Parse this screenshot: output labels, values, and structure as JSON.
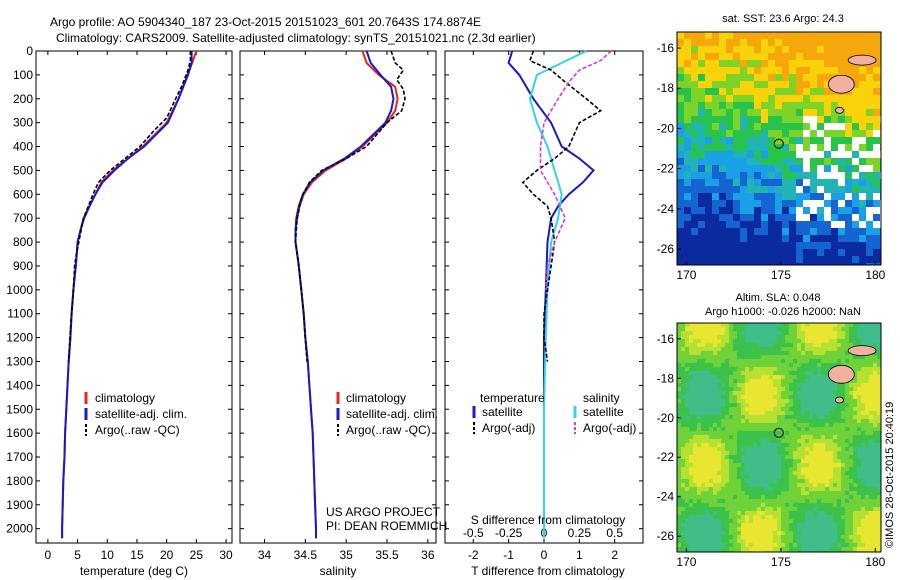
{
  "header": {
    "line1": "Argo profile: AO 5904340_187 23-Oct-2015 20151023_601 20.7643S 174.8874E",
    "line2": "Climatology: CARS2009. Satellite-adjusted climatology: synTS_20151021.nc (2.3d earlier)"
  },
  "credit": {
    "project": "US ARGO PROJECT",
    "pi": "PI: DEAN ROEMMICH",
    "stamp": "©IMOS 28-Oct-2015 20:40:19"
  },
  "colors": {
    "climatology": "#e8261c",
    "satellite": "#1a1acc",
    "argo": "#000000",
    "sat_diff": "#1a1acc",
    "sal_sat_diff": "#33d6e6",
    "sal_argo_diff": "#d93ad9",
    "land": "#f2b0a0"
  },
  "chart_data": [
    {
      "type": "line",
      "panel": "temperature",
      "xlabel": "temperature (deg C)",
      "ylabel": "",
      "xlim": [
        -2,
        31
      ],
      "ylim": [
        2060,
        0
      ],
      "xticks": [
        0,
        5,
        10,
        15,
        20,
        25,
        30
      ],
      "yticks": [
        0,
        100,
        200,
        300,
        400,
        500,
        600,
        700,
        800,
        900,
        1000,
        1100,
        1200,
        1300,
        1400,
        1500,
        1600,
        1700,
        1800,
        1900,
        2000
      ],
      "legend": [
        "climatology",
        "satellite-adj. clim.",
        "Argo(..raw -QC)"
      ],
      "series": [
        {
          "name": "climatology",
          "color": "#e8261c",
          "points": [
            [
              25.0,
              0
            ],
            [
              24.3,
              50
            ],
            [
              23.5,
              100
            ],
            [
              22.0,
              200
            ],
            [
              20.0,
              300
            ],
            [
              16.0,
              400
            ],
            [
              13.5,
              450
            ],
            [
              11.0,
              500
            ],
            [
              9.0,
              550
            ],
            [
              8.0,
              600
            ],
            [
              7.0,
              650
            ],
            [
              6.0,
              700
            ],
            [
              5.5,
              750
            ],
            [
              5.0,
              800
            ],
            [
              4.7,
              900
            ],
            [
              4.3,
              1000
            ],
            [
              4.0,
              1100
            ],
            [
              3.8,
              1200
            ],
            [
              3.5,
              1300
            ],
            [
              3.3,
              1400
            ],
            [
              3.1,
              1500
            ],
            [
              2.9,
              1600
            ],
            [
              2.8,
              1700
            ],
            [
              2.6,
              1800
            ],
            [
              2.5,
              1900
            ],
            [
              2.4,
              2000
            ],
            [
              2.4,
              2040
            ]
          ]
        },
        {
          "name": "satellite-adj. clim.",
          "color": "#1a1acc",
          "points": [
            [
              24.2,
              0
            ],
            [
              24.2,
              50
            ],
            [
              23.6,
              100
            ],
            [
              22.0,
              200
            ],
            [
              20.2,
              300
            ],
            [
              16.2,
              400
            ],
            [
              13.5,
              450
            ],
            [
              11.2,
              500
            ],
            [
              9.2,
              550
            ],
            [
              8.0,
              600
            ],
            [
              7.0,
              650
            ],
            [
              6.1,
              700
            ],
            [
              5.5,
              750
            ],
            [
              5.0,
              800
            ],
            [
              4.7,
              900
            ],
            [
              4.3,
              1000
            ],
            [
              4.0,
              1100
            ],
            [
              3.8,
              1200
            ],
            [
              3.5,
              1300
            ],
            [
              3.3,
              1400
            ],
            [
              3.1,
              1500
            ],
            [
              2.9,
              1600
            ],
            [
              2.8,
              1700
            ],
            [
              2.6,
              1800
            ],
            [
              2.5,
              1900
            ],
            [
              2.4,
              2000
            ],
            [
              2.4,
              2040
            ]
          ]
        },
        {
          "name": "Argo(..raw -QC)",
          "color": "#000000",
          "dashed": true,
          "points": [
            [
              24.0,
              0
            ],
            [
              24.0,
              40
            ],
            [
              23.6,
              80
            ],
            [
              22.5,
              150
            ],
            [
              21.5,
              200
            ],
            [
              20.0,
              280
            ],
            [
              18.0,
              330
            ],
            [
              15.5,
              400
            ],
            [
              13.0,
              450
            ],
            [
              10.5,
              500
            ],
            [
              8.5,
              550
            ],
            [
              7.6,
              600
            ],
            [
              6.8,
              650
            ],
            [
              6.0,
              700
            ],
            [
              5.6,
              750
            ],
            [
              5.2,
              800
            ],
            [
              4.8,
              850
            ],
            [
              4.5,
              900
            ],
            [
              4.3,
              1000
            ],
            [
              4.0,
              1100
            ],
            [
              3.7,
              1200
            ],
            [
              3.5,
              1300
            ]
          ]
        }
      ]
    },
    {
      "type": "line",
      "panel": "salinity",
      "xlabel": "salinity",
      "ylabel": "",
      "xlim": [
        33.7,
        36.1
      ],
      "ylim": [
        2060,
        0
      ],
      "xticks": [
        34,
        34.5,
        35,
        35.5,
        36
      ],
      "legend": [
        "climatology",
        "satellite-adj. clim.",
        "Argo(..raw -QC)"
      ],
      "series": [
        {
          "name": "climatology",
          "color": "#e8261c",
          "points": [
            [
              35.2,
              0
            ],
            [
              35.25,
              50
            ],
            [
              35.4,
              100
            ],
            [
              35.6,
              150
            ],
            [
              35.63,
              200
            ],
            [
              35.6,
              250
            ],
            [
              35.5,
              300
            ],
            [
              35.2,
              400
            ],
            [
              35.0,
              450
            ],
            [
              34.75,
              500
            ],
            [
              34.58,
              550
            ],
            [
              34.48,
              600
            ],
            [
              34.43,
              650
            ],
            [
              34.4,
              700
            ],
            [
              34.38,
              750
            ],
            [
              34.38,
              800
            ],
            [
              34.4,
              850
            ],
            [
              34.42,
              900
            ],
            [
              34.45,
              1000
            ],
            [
              34.48,
              1100
            ],
            [
              34.5,
              1200
            ],
            [
              34.53,
              1300
            ],
            [
              34.55,
              1400
            ],
            [
              34.57,
              1500
            ],
            [
              34.59,
              1600
            ],
            [
              34.6,
              1700
            ],
            [
              34.61,
              1800
            ],
            [
              34.62,
              1900
            ],
            [
              34.63,
              2000
            ],
            [
              34.63,
              2040
            ]
          ]
        },
        {
          "name": "satellite-adj. clim.",
          "color": "#1a1acc",
          "points": [
            [
              35.25,
              0
            ],
            [
              35.3,
              50
            ],
            [
              35.42,
              100
            ],
            [
              35.55,
              150
            ],
            [
              35.58,
              200
            ],
            [
              35.55,
              250
            ],
            [
              35.48,
              300
            ],
            [
              35.18,
              400
            ],
            [
              34.98,
              450
            ],
            [
              34.72,
              500
            ],
            [
              34.56,
              550
            ],
            [
              34.47,
              600
            ],
            [
              34.42,
              650
            ],
            [
              34.39,
              700
            ],
            [
              34.38,
              750
            ],
            [
              34.38,
              800
            ],
            [
              34.4,
              850
            ],
            [
              34.42,
              900
            ],
            [
              34.45,
              1000
            ],
            [
              34.48,
              1100
            ],
            [
              34.5,
              1200
            ],
            [
              34.53,
              1300
            ],
            [
              34.55,
              1400
            ],
            [
              34.57,
              1500
            ],
            [
              34.59,
              1600
            ],
            [
              34.6,
              1700
            ],
            [
              34.61,
              1800
            ],
            [
              34.62,
              1900
            ],
            [
              34.63,
              2000
            ],
            [
              34.63,
              2040
            ]
          ]
        },
        {
          "name": "Argo(..raw -QC)",
          "color": "#000000",
          "dashed": true,
          "points": [
            [
              35.55,
              0
            ],
            [
              35.6,
              50
            ],
            [
              35.7,
              80
            ],
            [
              35.62,
              120
            ],
            [
              35.7,
              160
            ],
            [
              35.72,
              200
            ],
            [
              35.68,
              250
            ],
            [
              35.5,
              300
            ],
            [
              35.25,
              400
            ],
            [
              35.0,
              450
            ],
            [
              34.7,
              500
            ],
            [
              34.55,
              550
            ],
            [
              34.47,
              600
            ],
            [
              34.43,
              650
            ],
            [
              34.4,
              700
            ],
            [
              34.39,
              750
            ],
            [
              34.38,
              800
            ],
            [
              34.4,
              850
            ],
            [
              34.42,
              900
            ],
            [
              34.45,
              1000
            ],
            [
              34.48,
              1100
            ],
            [
              34.5,
              1200
            ],
            [
              34.52,
              1300
            ]
          ]
        }
      ]
    },
    {
      "type": "line",
      "panel": "difference",
      "xlabel": "T difference from climatology",
      "top_xlabel": "S difference from climatology",
      "xlim": [
        -2.8,
        2.8
      ],
      "ylim": [
        2060,
        0
      ],
      "xticks": [
        -2,
        -1,
        0,
        1,
        2
      ],
      "top_xticks": [
        -0.5,
        -0.25,
        0,
        0.25,
        0.5
      ],
      "legend_temperature_title": "temperature",
      "legend_salinity_title": "salinity",
      "legend": [
        "satellite",
        "Argo(-adj)",
        "satellite",
        "Argo(-adj)"
      ],
      "series": [
        {
          "name": "satellite",
          "group": "temperature",
          "color": "#1a1acc",
          "points": [
            [
              -0.9,
              0
            ],
            [
              -1.0,
              50
            ],
            [
              -0.7,
              100
            ],
            [
              -0.3,
              200
            ],
            [
              0.2,
              300
            ],
            [
              0.5,
              400
            ],
            [
              1.0,
              450
            ],
            [
              1.4,
              500
            ],
            [
              1.1,
              550
            ],
            [
              0.7,
              600
            ],
            [
              0.4,
              650
            ],
            [
              0.2,
              700
            ],
            [
              0.1,
              800
            ],
            [
              0.05,
              1000
            ],
            [
              0,
              1200
            ],
            [
              0,
              1500
            ],
            [
              0,
              2040
            ]
          ]
        },
        {
          "name": "satellite",
          "group": "salinity",
          "color": "#33d6e6",
          "points": [
            [
              1.2,
              0
            ],
            [
              0.5,
              50
            ],
            [
              -0.2,
              100
            ],
            [
              -0.4,
              200
            ],
            [
              -0.2,
              300
            ],
            [
              0.1,
              400
            ],
            [
              0.3,
              500
            ],
            [
              0.5,
              600
            ],
            [
              0.4,
              700
            ],
            [
              0.2,
              800
            ],
            [
              0.1,
              1000
            ],
            [
              0.05,
              1200
            ],
            [
              0,
              1500
            ],
            [
              0,
              2040
            ]
          ]
        },
        {
          "name": "Argo(-adj)",
          "group": "temperature",
          "color": "#000000",
          "dashed": true,
          "points": [
            [
              -0.3,
              0
            ],
            [
              -0.4,
              40
            ],
            [
              0.2,
              80
            ],
            [
              0.6,
              130
            ],
            [
              1.2,
              200
            ],
            [
              1.6,
              250
            ],
            [
              1.0,
              300
            ],
            [
              0.7,
              400
            ],
            [
              0.3,
              450
            ],
            [
              -0.2,
              500
            ],
            [
              -0.6,
              550
            ],
            [
              -0.3,
              600
            ],
            [
              0.1,
              650
            ],
            [
              0.2,
              700
            ],
            [
              0.3,
              800
            ],
            [
              0.2,
              900
            ],
            [
              0.1,
              1000
            ],
            [
              0.0,
              1100
            ],
            [
              0.0,
              1200
            ],
            [
              0.1,
              1300
            ]
          ]
        },
        {
          "name": "Argo(-adj)",
          "group": "salinity",
          "color": "#d93ad9",
          "dashed": true,
          "points": [
            [
              1.9,
              0
            ],
            [
              1.6,
              40
            ],
            [
              1.0,
              80
            ],
            [
              0.7,
              130
            ],
            [
              0.4,
              200
            ],
            [
              0.0,
              300
            ],
            [
              -0.1,
              400
            ],
            [
              -0.1,
              500
            ],
            [
              0.3,
              600
            ],
            [
              0.6,
              700
            ],
            [
              0.3,
              800
            ],
            [
              0.1,
              900
            ],
            [
              0.05,
              1000
            ]
          ]
        }
      ]
    },
    {
      "type": "heatmap",
      "panel": "sst_map",
      "title": "sat. SST: 23.6 Argo: 24.3",
      "xlim": [
        169.5,
        180.3
      ],
      "ylim": [
        -26.8,
        -15.2
      ],
      "xticks": [
        170,
        175,
        180
      ],
      "yticks": [
        -16,
        -18,
        -20,
        -22,
        -24,
        -26
      ],
      "marker": {
        "lon": 174.8874,
        "lat": -20.7643
      }
    },
    {
      "type": "heatmap",
      "panel": "sla_map",
      "title": "Altim. SLA: 0.048",
      "subtitle": "Argo h1000: -0.026 h2000: NaN",
      "xlim": [
        169.5,
        180.3
      ],
      "ylim": [
        -26.8,
        -15.2
      ],
      "xticks": [
        170,
        175,
        180
      ],
      "yticks": [
        -16,
        -18,
        -20,
        -22,
        -24,
        -26
      ],
      "marker": {
        "lon": 174.8874,
        "lat": -20.7643
      }
    }
  ]
}
